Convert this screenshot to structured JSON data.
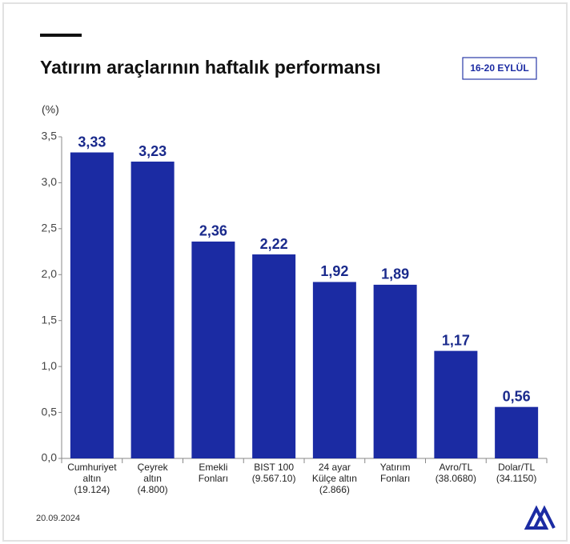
{
  "chart_data": {
    "type": "bar",
    "title": "Yatırım araçlarının haftalık performansı",
    "badge": "16-20 EYLÜL",
    "y_label": "(%)",
    "date": "20.09.2024",
    "categories": [
      [
        "Cumhuriyet",
        "altın",
        "(19.124)"
      ],
      [
        "Çeyrek",
        "altın",
        "(4.800)"
      ],
      [
        "Emekli",
        "Fonları"
      ],
      [
        "BIST 100",
        "(9.567.10)"
      ],
      [
        "24 ayar",
        "Külçe altın",
        "(2.866)"
      ],
      [
        "Yatırım",
        "Fonları"
      ],
      [
        "Avro/TL",
        "(38.0680)"
      ],
      [
        "Dolar/TL",
        "(34.1150)"
      ]
    ],
    "values": [
      3.33,
      3.23,
      2.36,
      2.22,
      1.92,
      1.89,
      1.17,
      0.56
    ],
    "value_labels": [
      "3,33",
      "3,23",
      "2,36",
      "2,22",
      "1,92",
      "1,89",
      "1,17",
      "0,56"
    ],
    "color": "#1b2ba3",
    "ylim": [
      0,
      3.5
    ],
    "yticks": [
      {
        "value": 0,
        "label": "0,0"
      },
      {
        "value": 0.5,
        "label": "0,5"
      },
      {
        "value": 1,
        "label": "1,0"
      },
      {
        "value": 1.5,
        "label": "1,5"
      },
      {
        "value": 2,
        "label": "2,0"
      },
      {
        "value": 2.5,
        "label": "2,5"
      },
      {
        "value": 3,
        "label": "3,0"
      },
      {
        "value": 3.5,
        "label": "3,5"
      }
    ]
  }
}
